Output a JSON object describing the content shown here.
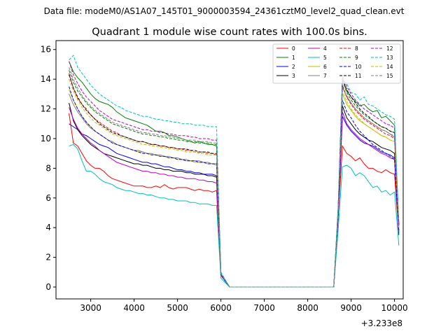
{
  "chart_data": {
    "type": "line",
    "suptitle": "Data file: modeM0/AS1A07_145T01_9000003594_24361cztM0_level2_quad_clean.evt",
    "title": "Quadrant 1 module wise count rates with 100.0s bins.",
    "xlabel": "",
    "ylabel": "",
    "x_offset_label": "+3.233e8",
    "xlim": [
      2200,
      10200
    ],
    "ylim": [
      -0.8,
      16.6
    ],
    "xticks": [
      3000,
      4000,
      5000,
      6000,
      7000,
      8000,
      9000,
      10000
    ],
    "yticks": [
      0,
      2,
      4,
      6,
      8,
      10,
      12,
      14,
      16
    ],
    "xtick_labels": [
      "3000",
      "4000",
      "5000",
      "6000",
      "7000",
      "8000",
      "9000",
      "10000"
    ],
    "ytick_labels": [
      "0",
      "2",
      "4",
      "6",
      "8",
      "10",
      "12",
      "14",
      "16"
    ],
    "x_start": 2500,
    "x_step": 100,
    "gap_start": 6200,
    "gap_end": 8600,
    "legend_position": "upper right",
    "series": [
      {
        "name": "0",
        "color": "#ff0000",
        "style": "solid",
        "seg1": [
          11.7,
          9.7,
          9.5,
          9.0,
          8.5,
          8.2,
          8.0,
          8.0,
          7.8,
          7.5,
          7.3,
          7.2,
          7.1,
          7.0,
          6.9,
          6.8,
          6.8,
          6.8,
          6.7,
          6.7,
          6.8,
          6.7,
          6.9,
          6.7,
          6.6,
          6.7,
          6.7,
          6.7,
          6.6,
          6.5,
          6.6,
          6.5,
          6.5,
          6.4,
          6.5,
          0.8
        ],
        "seg2": [
          4.7,
          9.5,
          9.0,
          8.8,
          8.5,
          8.7,
          8.3,
          8.0,
          8.0,
          7.8,
          7.7,
          7.9,
          7.7,
          7.6,
          3.6
        ]
      },
      {
        "name": "1",
        "color": "#008000",
        "style": "solid",
        "seg1": [
          15.2,
          14.5,
          14.1,
          13.8,
          13.4,
          13.0,
          12.7,
          12.5,
          12.4,
          12.3,
          12.1,
          11.8,
          11.6,
          11.4,
          11.3,
          11.2,
          11.1,
          11.0,
          10.9,
          10.7,
          10.5,
          10.5,
          10.4,
          10.2,
          10.2,
          10.1,
          10.0,
          9.9,
          9.8,
          9.7,
          9.8,
          9.7,
          9.6,
          9.6,
          9.5,
          0.9
        ],
        "seg2": [
          5.2,
          14.1,
          13.2,
          12.8,
          12.5,
          12.2,
          12.3,
          12.0,
          11.8,
          11.9,
          11.4,
          11.5,
          11.2,
          10.9,
          4.2
        ]
      },
      {
        "name": "2",
        "color": "#0000ff",
        "style": "solid",
        "seg1": [
          11.0,
          10.8,
          10.6,
          10.3,
          10.2,
          10.0,
          9.8,
          9.6,
          9.5,
          9.4,
          9.2,
          9.0,
          8.9,
          8.8,
          8.7,
          8.6,
          8.5,
          8.4,
          8.4,
          8.3,
          8.3,
          8.2,
          8.1,
          8.1,
          8.0,
          7.9,
          7.9,
          7.8,
          7.8,
          7.7,
          7.7,
          7.6,
          7.6,
          7.6,
          7.5,
          0.8
        ],
        "seg2": [
          4.6,
          11.5,
          10.9,
          10.5,
          10.2,
          9.9,
          9.7,
          9.6,
          9.5,
          9.3,
          9.1,
          9.0,
          8.9,
          8.7,
          3.5
        ]
      },
      {
        "name": "3",
        "color": "#000000",
        "style": "solid",
        "seg1": [
          12.4,
          11.2,
          10.6,
          10.2,
          9.9,
          9.6,
          9.4,
          9.2,
          9.0,
          8.9,
          8.8,
          8.7,
          8.6,
          8.5,
          8.4,
          8.3,
          8.3,
          8.2,
          8.2,
          8.1,
          8.0,
          8.0,
          7.9,
          7.9,
          7.8,
          7.8,
          7.8,
          7.7,
          7.7,
          7.6,
          7.6,
          7.6,
          7.5,
          7.5,
          7.4,
          0.8
        ],
        "seg2": [
          4.8,
          12.2,
          11.4,
          11.0,
          10.6,
          10.3,
          10.1,
          9.9,
          9.8,
          9.6,
          9.4,
          9.3,
          9.2,
          9.0,
          3.8
        ]
      },
      {
        "name": "4",
        "color": "#bf00bf",
        "style": "solid",
        "seg1": [
          12.1,
          11.3,
          10.7,
          10.3,
          10.0,
          9.7,
          9.5,
          9.2,
          9.0,
          8.8,
          8.6,
          8.4,
          8.3,
          8.2,
          8.1,
          8.0,
          7.9,
          7.8,
          7.8,
          7.7,
          7.7,
          7.6,
          7.6,
          7.5,
          7.5,
          7.4,
          7.4,
          7.3,
          7.3,
          7.3,
          7.2,
          7.2,
          7.1,
          7.1,
          7.0,
          0.8
        ],
        "seg2": [
          4.9,
          11.8,
          11.0,
          10.6,
          10.3,
          10.0,
          9.8,
          9.6,
          9.4,
          9.2,
          9.0,
          8.9,
          8.7,
          8.6,
          3.7
        ]
      },
      {
        "name": "5",
        "color": "#00bfbf",
        "style": "solid",
        "seg1": [
          9.5,
          9.6,
          9.3,
          8.5,
          7.8,
          7.8,
          7.6,
          7.3,
          7.1,
          7.0,
          6.9,
          6.7,
          6.6,
          6.5,
          6.5,
          6.4,
          6.3,
          6.3,
          6.2,
          6.2,
          6.1,
          6.0,
          6.0,
          5.9,
          5.9,
          5.8,
          5.8,
          5.8,
          5.7,
          5.7,
          5.6,
          5.6,
          5.6,
          5.5,
          5.5,
          0.6
        ],
        "seg2": [
          3.8,
          8.1,
          8.2,
          8.0,
          7.5,
          7.7,
          7.5,
          7.1,
          6.7,
          6.8,
          6.4,
          6.5,
          6.2,
          6.4,
          2.8
        ]
      },
      {
        "name": "6",
        "color": "#bfbf00",
        "style": "solid",
        "seg1": [
          13.3,
          12.6,
          12.0,
          11.5,
          11.1,
          10.8,
          10.5,
          10.3,
          10.1,
          9.9,
          9.7,
          9.6,
          9.5,
          9.4,
          9.3,
          9.2,
          9.1,
          9.1,
          9.0,
          8.9,
          8.9,
          8.8,
          8.8,
          8.7,
          8.7,
          8.6,
          8.6,
          8.5,
          8.5,
          8.4,
          8.4,
          8.4,
          8.3,
          8.3,
          8.2,
          0.9
        ],
        "seg2": [
          5.0,
          13.0,
          12.3,
          11.9,
          11.5,
          11.2,
          11.0,
          10.8,
          10.6,
          10.4,
          10.2,
          10.1,
          9.9,
          9.8,
          4.0
        ]
      },
      {
        "name": "7",
        "color": "#808080",
        "style": "solid",
        "seg1": [
          13.0,
          12.3,
          11.8,
          11.4,
          11.0,
          10.7,
          10.5,
          10.3,
          10.1,
          9.9,
          9.8,
          9.6,
          9.5,
          9.4,
          9.3,
          9.2,
          9.2,
          9.1,
          9.0,
          9.0,
          8.9,
          8.9,
          8.8,
          8.8,
          8.7,
          8.7,
          8.6,
          8.6,
          8.5,
          8.5,
          8.5,
          8.4,
          8.4,
          8.3,
          8.3,
          0.9
        ],
        "seg2": [
          5.0,
          13.5,
          12.8,
          12.4,
          12.0,
          11.7,
          11.4,
          11.2,
          11.0,
          10.8,
          10.6,
          10.5,
          10.3,
          10.1,
          4.1
        ]
      },
      {
        "name": "8",
        "color": "#ff0000",
        "style": "dashed",
        "seg1": [
          14.4,
          13.4,
          12.7,
          12.3,
          12.0,
          11.6,
          11.3,
          11.1,
          10.9,
          10.7,
          10.5,
          10.4,
          10.2,
          10.1,
          10.0,
          9.9,
          9.8,
          9.8,
          9.7,
          9.6,
          9.6,
          9.5,
          9.5,
          9.4,
          9.4,
          9.3,
          9.3,
          9.2,
          9.2,
          9.1,
          9.1,
          9.1,
          9.0,
          9.0,
          8.9,
          0.9
        ],
        "seg2": [
          5.1,
          13.6,
          12.8,
          12.3,
          11.9,
          11.6,
          11.3,
          11.1,
          10.9,
          10.7,
          10.5,
          10.3,
          10.2,
          10.0,
          4.1
        ]
      },
      {
        "name": "9",
        "color": "#008000",
        "style": "dashed",
        "seg1": [
          14.6,
          13.8,
          13.2,
          12.8,
          12.4,
          12.1,
          11.8,
          11.6,
          11.4,
          11.2,
          11.0,
          10.9,
          10.8,
          10.7,
          10.6,
          10.5,
          10.4,
          10.3,
          10.3,
          10.2,
          10.2,
          10.1,
          10.1,
          10.0,
          10.0,
          9.9,
          9.9,
          9.8,
          9.8,
          9.8,
          9.7,
          9.7,
          9.7,
          9.6,
          9.6,
          0.9
        ],
        "seg2": [
          5.2,
          13.9,
          13.1,
          12.6,
          12.2,
          11.9,
          11.6,
          11.4,
          11.2,
          11.0,
          10.8,
          10.7,
          10.5,
          10.4,
          4.2
        ]
      },
      {
        "name": "10",
        "color": "#0000ff",
        "style": "dashed",
        "seg1": [
          13.5,
          12.6,
          12.0,
          11.5,
          11.1,
          10.8,
          10.5,
          10.3,
          10.1,
          9.9,
          9.7,
          9.6,
          9.5,
          9.4,
          9.3,
          9.2,
          9.1,
          9.0,
          9.0,
          8.9,
          8.9,
          8.8,
          8.8,
          8.7,
          8.7,
          8.6,
          8.6,
          8.5,
          8.5,
          8.5,
          8.4,
          8.4,
          8.3,
          8.3,
          8.3,
          0.8
        ],
        "seg2": [
          4.9,
          12.6,
          11.8,
          11.4,
          10.9,
          10.5,
          10.2,
          9.9,
          9.6,
          9.4,
          9.2,
          9.0,
          8.8,
          8.6,
          3.7
        ]
      },
      {
        "name": "11",
        "color": "#000000",
        "style": "dashed",
        "seg1": [
          14.3,
          13.4,
          12.8,
          12.3,
          11.9,
          11.6,
          11.3,
          11.0,
          10.8,
          10.6,
          10.4,
          10.3,
          10.2,
          10.1,
          10.0,
          9.9,
          9.8,
          9.8,
          9.7,
          9.6,
          9.6,
          9.5,
          9.5,
          9.4,
          9.4,
          9.3,
          9.3,
          9.3,
          9.2,
          9.2,
          9.1,
          9.1,
          9.1,
          9.0,
          9.0,
          0.9
        ],
        "seg2": [
          5.1,
          14.0,
          13.3,
          12.8,
          12.4,
          12.0,
          11.7,
          11.5,
          11.2,
          11.0,
          10.8,
          10.7,
          10.5,
          10.4,
          4.2
        ]
      },
      {
        "name": "12",
        "color": "#bf00bf",
        "style": "dashed",
        "seg1": [
          15.2,
          14.3,
          13.7,
          13.2,
          12.8,
          12.5,
          12.2,
          11.9,
          11.7,
          11.5,
          11.3,
          11.2,
          11.1,
          11.0,
          10.9,
          10.8,
          10.7,
          10.6,
          10.6,
          10.5,
          10.5,
          10.4,
          10.4,
          10.3,
          10.3,
          10.2,
          10.2,
          10.2,
          10.1,
          10.1,
          10.0,
          10.0,
          10.0,
          9.9,
          9.9,
          0.9
        ],
        "seg2": [
          5.3,
          14.2,
          13.5,
          13.0,
          12.6,
          12.3,
          12.0,
          11.8,
          11.6,
          11.4,
          11.2,
          11.0,
          10.9,
          10.7,
          4.3
        ]
      },
      {
        "name": "13",
        "color": "#00bfbf",
        "style": "dashed",
        "seg1": [
          15.3,
          15.6,
          14.8,
          14.4,
          14.0,
          13.6,
          13.3,
          13.0,
          12.8,
          12.6,
          12.4,
          12.2,
          12.1,
          11.9,
          11.8,
          11.7,
          11.6,
          11.5,
          11.5,
          11.4,
          11.3,
          11.3,
          11.2,
          11.2,
          11.1,
          11.1,
          11.0,
          11.0,
          11.0,
          10.9,
          10.9,
          10.9,
          10.8,
          10.8,
          10.8,
          1.0
        ],
        "seg2": [
          5.4,
          13.8,
          13.7,
          13.1,
          13.0,
          12.6,
          12.8,
          12.3,
          12.2,
          12.0,
          11.8,
          11.6,
          11.5,
          11.3,
          4.4
        ]
      },
      {
        "name": "14",
        "color": "#bfbf00",
        "style": "dashed",
        "seg1": [
          14.0,
          13.2,
          12.6,
          12.1,
          11.7,
          11.4,
          11.1,
          10.9,
          10.7,
          10.5,
          10.3,
          10.2,
          10.1,
          10.0,
          9.9,
          9.8,
          9.7,
          9.6,
          9.6,
          9.5,
          9.5,
          9.4,
          9.4,
          9.3,
          9.3,
          9.2,
          9.2,
          9.1,
          9.1,
          9.1,
          9.0,
          9.0,
          8.9,
          8.9,
          8.9,
          0.9
        ],
        "seg2": [
          5.1,
          13.2,
          12.5,
          12.0,
          11.6,
          11.3,
          11.0,
          10.8,
          10.6,
          10.4,
          10.2,
          10.1,
          9.9,
          9.8,
          4.0
        ]
      },
      {
        "name": "15",
        "color": "#808080",
        "style": "dashed",
        "seg1": [
          14.8,
          14.0,
          13.4,
          12.9,
          12.5,
          12.2,
          11.9,
          11.7,
          11.5,
          11.3,
          11.1,
          11.0,
          10.9,
          10.8,
          10.7,
          10.6,
          10.5,
          10.4,
          10.4,
          10.3,
          10.3,
          10.2,
          10.2,
          10.1,
          10.1,
          10.0,
          10.0,
          9.9,
          9.9,
          9.9,
          9.8,
          9.8,
          9.8,
          9.7,
          9.7,
          0.9
        ],
        "seg2": [
          5.2,
          13.4,
          12.9,
          12.4,
          12.0,
          11.7,
          11.4,
          11.2,
          11.0,
          10.8,
          10.6,
          10.5,
          10.3,
          10.2,
          4.1
        ]
      }
    ]
  }
}
